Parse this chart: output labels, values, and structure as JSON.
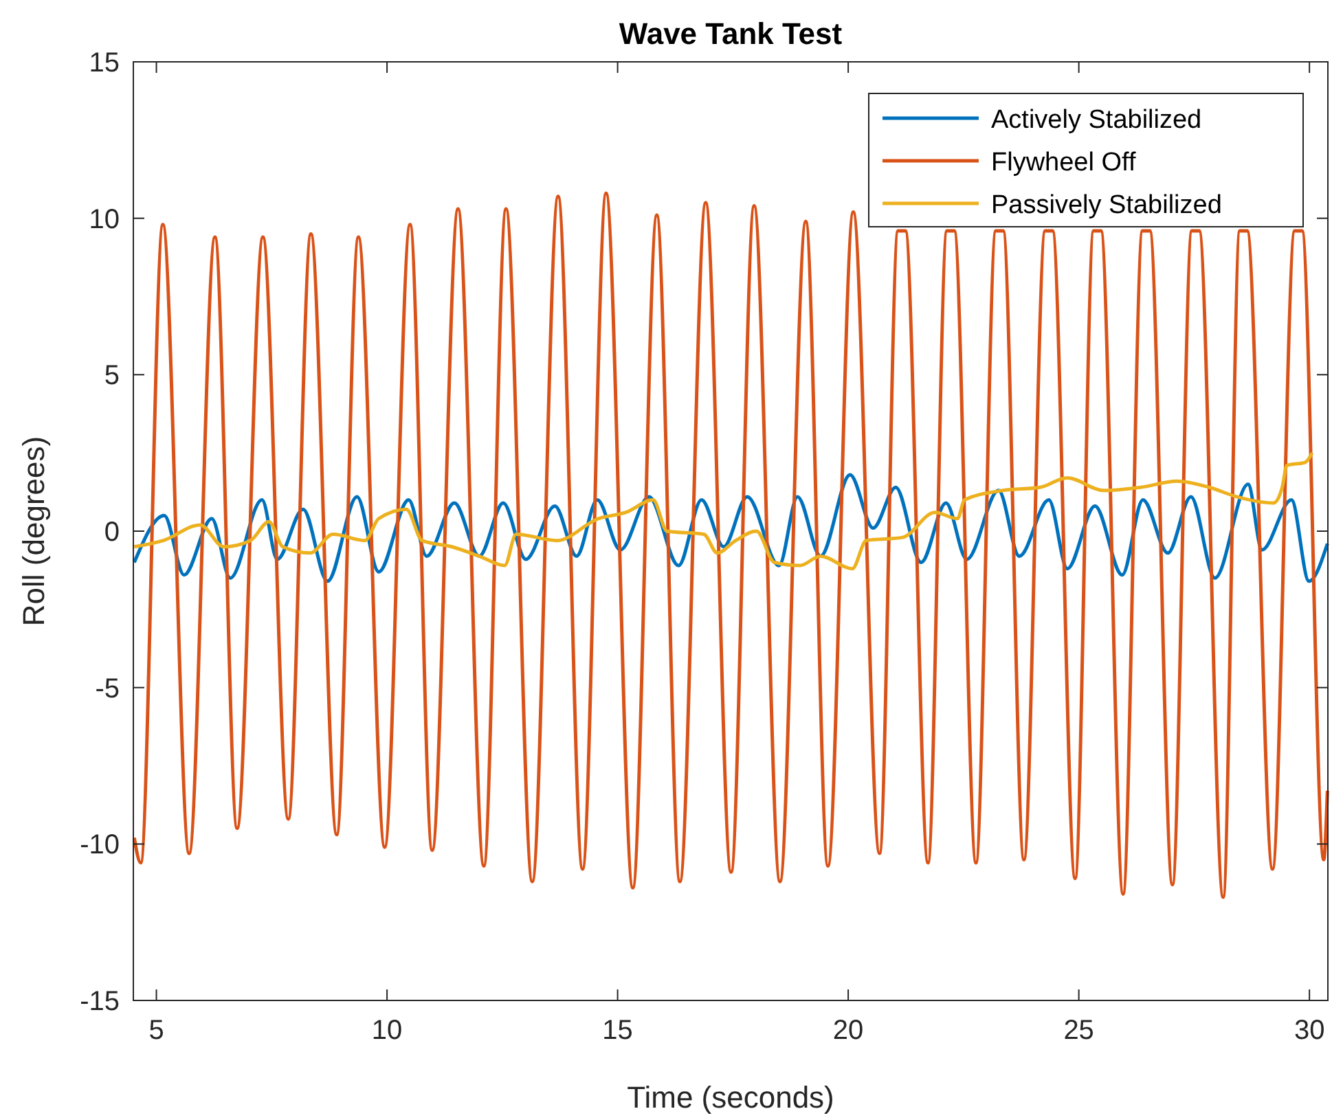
{
  "chart_data": {
    "type": "line",
    "title": "Wave Tank Test",
    "xlabel": "Time (seconds)",
    "ylabel": "Roll (degrees)",
    "xlim": [
      4.5,
      30.4
    ],
    "xticks": [
      5,
      10,
      15,
      20,
      25,
      30
    ],
    "ylim": [
      -15,
      15
    ],
    "yticks": [
      -15,
      -10,
      -5,
      0,
      5,
      10,
      15
    ],
    "grid": false,
    "legend": "top right",
    "line_style": "solid",
    "marker": "none",
    "series": [
      {
        "name": "Actively Stabilized",
        "color": "#0072bd",
        "x": [
          4.52,
          5.17,
          5.6,
          6.2,
          6.6,
          7.29,
          7.62,
          8.18,
          8.71,
          9.35,
          9.82,
          10.47,
          10.86,
          11.46,
          12.0,
          12.52,
          13.01,
          13.64,
          14.11,
          14.56,
          15.06,
          15.68,
          16.32,
          16.82,
          17.3,
          17.81,
          18.5,
          18.9,
          19.4,
          20.04,
          20.54,
          21.03,
          21.58,
          22.12,
          22.57,
          23.26,
          23.71,
          24.35,
          24.75,
          25.35,
          25.94,
          26.39,
          26.93,
          27.43,
          27.95,
          28.67,
          28.97,
          29.61,
          29.99,
          30.39
        ],
        "values": [
          -1.0,
          0.5,
          -1.4,
          0.4,
          -1.5,
          1.0,
          -0.9,
          0.7,
          -1.6,
          1.1,
          -1.3,
          1.0,
          -0.8,
          0.9,
          -0.8,
          0.9,
          -0.9,
          0.8,
          -0.8,
          1.0,
          -0.6,
          1.1,
          -1.1,
          1.0,
          -0.5,
          1.1,
          -1.1,
          1.1,
          -0.8,
          1.8,
          0.1,
          1.4,
          -1.0,
          0.9,
          -0.9,
          1.3,
          -0.8,
          1.0,
          -1.2,
          0.8,
          -1.4,
          1.0,
          -0.7,
          1.1,
          -1.5,
          1.5,
          -0.6,
          1.0,
          -1.6,
          -0.4
        ]
      },
      {
        "name": "Flywheel Off",
        "color": "#d95319",
        "x": [
          4.52,
          4.66,
          5.14,
          5.71,
          6.27,
          6.75,
          7.31,
          7.86,
          8.35,
          8.91,
          9.38,
          9.95,
          10.5,
          10.98,
          11.54,
          12.1,
          12.58,
          13.15,
          13.71,
          14.24,
          14.75,
          15.33,
          15.85,
          16.35,
          16.91,
          17.46,
          17.96,
          18.52,
          19.08,
          19.56,
          20.11,
          20.68,
          21.08,
          21.24,
          21.73,
          22.14,
          22.3,
          22.77,
          23.2,
          23.36,
          23.81,
          24.27,
          24.43,
          24.92,
          25.32,
          25.48,
          25.96,
          26.38,
          26.54,
          27.03,
          27.45,
          27.61,
          28.13,
          28.49,
          28.65,
          29.2,
          29.68,
          29.84,
          30.31,
          30.39
        ],
        "values": [
          -9.8,
          -10.6,
          9.8,
          -10.3,
          9.4,
          -9.5,
          9.4,
          -9.2,
          9.5,
          -9.7,
          9.4,
          -10.1,
          9.8,
          -10.2,
          10.3,
          -10.7,
          10.3,
          -11.2,
          10.7,
          -10.8,
          10.8,
          -11.4,
          10.1,
          -11.2,
          10.5,
          -10.9,
          10.4,
          -11.2,
          9.9,
          -10.7,
          10.2,
          -10.3,
          9.6,
          9.6,
          -10.6,
          9.6,
          9.6,
          -10.6,
          9.6,
          9.6,
          -10.5,
          9.6,
          9.6,
          -11.1,
          9.6,
          9.6,
          -11.6,
          9.6,
          9.6,
          -11.3,
          9.6,
          9.6,
          -11.7,
          9.6,
          9.6,
          -10.8,
          9.6,
          9.6,
          -10.5,
          -8.3
        ]
      },
      {
        "name": "Passively Stabilized",
        "color": "#edb120",
        "x": [
          4.52,
          5.15,
          5.95,
          6.46,
          7.04,
          7.44,
          7.74,
          8.33,
          8.83,
          9.52,
          9.82,
          10.42,
          10.76,
          11.41,
          12.0,
          12.55,
          12.8,
          13.69,
          14.58,
          15.18,
          15.77,
          16.07,
          16.87,
          17.16,
          17.56,
          18.01,
          18.4,
          18.95,
          19.4,
          20.09,
          20.39,
          21.18,
          21.88,
          22.37,
          22.52,
          23.36,
          24.16,
          24.75,
          25.54,
          26.34,
          27.13,
          27.83,
          28.42,
          29.22,
          29.41,
          29.51,
          29.91,
          30.06
        ],
        "values": [
          -0.5,
          -0.3,
          0.2,
          -0.5,
          -0.3,
          0.3,
          -0.5,
          -0.7,
          -0.1,
          -0.3,
          0.4,
          0.7,
          -0.3,
          -0.5,
          -0.8,
          -1.1,
          -0.1,
          -0.3,
          0.4,
          0.6,
          1.0,
          0.0,
          -0.1,
          -0.7,
          -0.3,
          0.0,
          -1.0,
          -1.1,
          -0.8,
          -1.2,
          -0.3,
          -0.2,
          0.6,
          0.4,
          1.0,
          1.3,
          1.4,
          1.7,
          1.3,
          1.4,
          1.6,
          1.4,
          1.1,
          0.9,
          1.4,
          2.1,
          2.2,
          2.5
        ]
      }
    ]
  }
}
